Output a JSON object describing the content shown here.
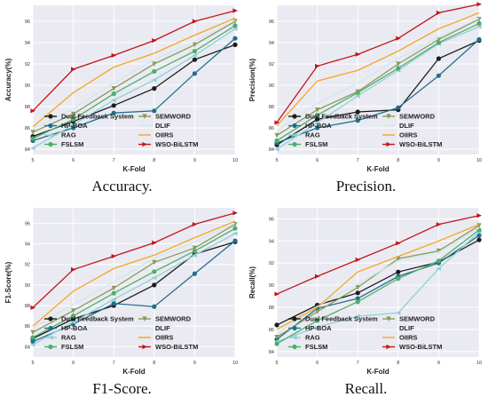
{
  "figure": {
    "xlabel": "K-Fold",
    "x": [
      5,
      6,
      7,
      8,
      9,
      10
    ],
    "captions": [
      "Accuracy.",
      "Precision.",
      "F1-Score.",
      "Recall."
    ]
  },
  "series_styles": [
    {
      "name": "Dual Feedback System",
      "color": "#1c1c1c",
      "marker": "circle"
    },
    {
      "name": "HP-BOA",
      "color": "#1f6f8b",
      "marker": "circle"
    },
    {
      "name": "RAG",
      "color": "#8fd0d6",
      "marker": "triangle-left"
    },
    {
      "name": "FSLSM",
      "color": "#4caf6a",
      "marker": "circle"
    },
    {
      "name": "SEMWORD",
      "color": "#8a9a5b",
      "marker": "triangle-down"
    },
    {
      "name": "DLIF",
      "color": "#cfe8ee",
      "marker": "none"
    },
    {
      "name": "OIIRS",
      "color": "#f5a623",
      "marker": "none"
    },
    {
      "name": "WSO-BiLSTM",
      "color": "#c0161c",
      "marker": "triangle-right"
    }
  ],
  "chart_data": [
    {
      "type": "line",
      "title": "",
      "xlabel": "K-Fold",
      "ylabel": "Accuracy(%)",
      "x": [
        5,
        6,
        7,
        8,
        9,
        10
      ],
      "ylim": [
        83.5,
        97.5
      ],
      "yticks": [
        84,
        86,
        88,
        90,
        92,
        94,
        96
      ],
      "legend": "bottom",
      "series": [
        {
          "name": "Dual Feedback System",
          "values": [
            85.2,
            86.6,
            88.1,
            89.7,
            92.4,
            93.8
          ]
        },
        {
          "name": "HP-BOA",
          "values": [
            84.8,
            86.0,
            87.4,
            87.6,
            91.1,
            94.4
          ]
        },
        {
          "name": "RAG",
          "values": [
            84.1,
            86.3,
            88.6,
            90.5,
            92.8,
            95.3
          ]
        },
        {
          "name": "FSLSM",
          "values": [
            85.0,
            86.8,
            89.2,
            91.3,
            93.2,
            95.6
          ]
        },
        {
          "name": "SEMWORD",
          "values": [
            85.6,
            87.3,
            89.7,
            92.0,
            93.8,
            96.0
          ]
        },
        {
          "name": "DLIF",
          "values": [
            85.9,
            87.8,
            90.2,
            92.4,
            94.1,
            96.1
          ]
        },
        {
          "name": "OIIRS",
          "values": [
            86.1,
            89.3,
            91.7,
            93.0,
            94.7,
            96.3
          ]
        },
        {
          "name": "WSO-BiLSTM",
          "values": [
            87.6,
            91.5,
            92.8,
            94.2,
            96.0,
            97.0
          ]
        }
      ]
    },
    {
      "type": "line",
      "title": "",
      "xlabel": "K-Fold",
      "ylabel": "Precision(%)",
      "x": [
        5,
        6,
        7,
        8,
        9,
        10
      ],
      "ylim": [
        83.5,
        97.5
      ],
      "yticks": [
        84,
        86,
        88,
        90,
        92,
        94,
        96
      ],
      "legend": "bottom",
      "series": [
        {
          "name": "Dual Feedback System",
          "values": [
            84.4,
            86.8,
            87.5,
            87.7,
            92.5,
            94.2
          ]
        },
        {
          "name": "HP-BOA",
          "values": [
            84.6,
            86.0,
            86.7,
            87.9,
            90.9,
            94.3
          ]
        },
        {
          "name": "RAG",
          "values": [
            84.0,
            86.5,
            89.0,
            91.4,
            93.9,
            95.5
          ]
        },
        {
          "name": "FSLSM",
          "values": [
            84.8,
            87.2,
            89.3,
            91.6,
            94.0,
            95.8
          ]
        },
        {
          "name": "SEMWORD",
          "values": [
            85.3,
            87.7,
            89.4,
            92.0,
            94.3,
            96.2
          ]
        },
        {
          "name": "DLIF",
          "values": [
            85.7,
            88.3,
            90.2,
            92.5,
            94.5,
            96.3
          ]
        },
        {
          "name": "OIIRS",
          "values": [
            86.2,
            90.4,
            91.4,
            93.2,
            95.3,
            96.8
          ]
        },
        {
          "name": "WSO-BiLSTM",
          "values": [
            86.5,
            91.8,
            92.9,
            94.4,
            96.8,
            97.6
          ]
        }
      ]
    },
    {
      "type": "line",
      "title": "",
      "xlabel": "K-Fold",
      "ylabel": "F1-Score(%)",
      "x": [
        5,
        6,
        7,
        8,
        9,
        10
      ],
      "ylim": [
        83.0,
        97.5
      ],
      "yticks": [
        84,
        86,
        88,
        90,
        92,
        94,
        96
      ],
      "legend": "bottom",
      "series": [
        {
          "name": "Dual Feedback System",
          "values": [
            84.8,
            86.7,
            88.0,
            90.0,
            93.0,
            94.2
          ]
        },
        {
          "name": "HP-BOA",
          "values": [
            84.5,
            86.2,
            88.2,
            87.9,
            91.1,
            94.3
          ]
        },
        {
          "name": "RAG",
          "values": [
            84.2,
            86.4,
            88.6,
            90.7,
            92.9,
            95.0
          ]
        },
        {
          "name": "FSLSM",
          "values": [
            84.9,
            87.0,
            89.2,
            91.3,
            93.3,
            95.5
          ]
        },
        {
          "name": "SEMWORD",
          "values": [
            85.4,
            87.5,
            89.7,
            92.2,
            93.6,
            95.9
          ]
        },
        {
          "name": "DLIF",
          "values": [
            85.8,
            88.1,
            90.3,
            92.6,
            94.2,
            96.0
          ]
        },
        {
          "name": "OIIRS",
          "values": [
            86.0,
            89.4,
            91.6,
            92.9,
            94.6,
            96.2
          ]
        },
        {
          "name": "WSO-BiLSTM",
          "values": [
            87.8,
            91.5,
            92.8,
            94.1,
            95.9,
            97.0
          ]
        }
      ]
    },
    {
      "type": "line",
      "title": "",
      "xlabel": "K-Fold",
      "ylabel": "Recall(%)",
      "x": [
        5,
        6,
        7,
        8,
        9,
        10
      ],
      "ylim": [
        83.5,
        97.0
      ],
      "yticks": [
        84,
        86,
        88,
        90,
        92,
        94,
        96
      ],
      "legend": "bottom",
      "series": [
        {
          "name": "Dual Feedback System",
          "values": [
            86.4,
            88.2,
            89.3,
            91.2,
            92.1,
            94.1
          ]
        },
        {
          "name": "HP-BOA",
          "values": [
            85.1,
            87.9,
            88.8,
            90.8,
            92.0,
            94.5
          ]
        },
        {
          "name": "RAG",
          "values": [
            84.9,
            86.2,
            87.2,
            87.5,
            91.5,
            94.8
          ]
        },
        {
          "name": "FSLSM",
          "values": [
            84.7,
            86.8,
            88.5,
            90.6,
            92.2,
            95.0
          ]
        },
        {
          "name": "SEMWORD",
          "values": [
            85.3,
            87.6,
            89.8,
            92.4,
            93.1,
            95.4
          ]
        },
        {
          "name": "DLIF",
          "values": [
            85.6,
            88.1,
            90.1,
            92.2,
            93.0,
            95.2
          ]
        },
        {
          "name": "OIIRS",
          "values": [
            86.0,
            88.0,
            91.2,
            92.6,
            94.0,
            95.5
          ]
        },
        {
          "name": "WSO-BiLSTM",
          "values": [
            89.2,
            90.8,
            92.3,
            93.8,
            95.5,
            96.3
          ]
        }
      ]
    }
  ]
}
